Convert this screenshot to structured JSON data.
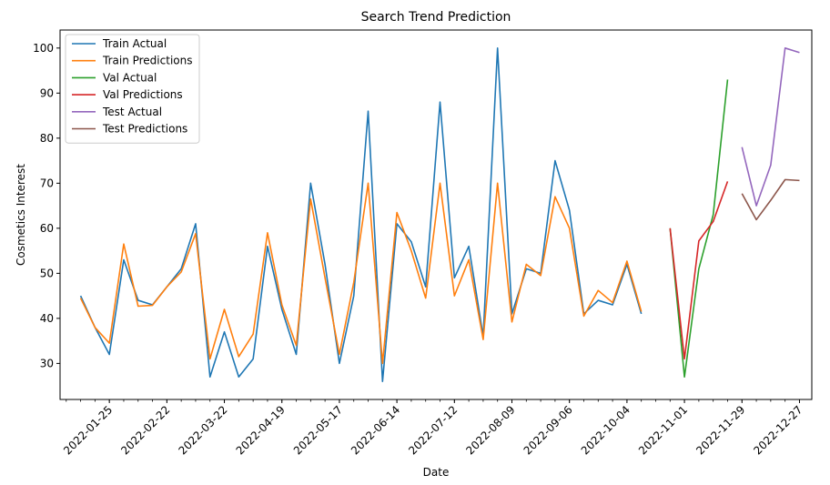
{
  "chart_data": {
    "type": "line",
    "title": "Search Trend Prediction",
    "xlabel": "Date",
    "ylabel": "Cosmetics Interest",
    "xlim": [
      "2022-01-01",
      "2023-01-02"
    ],
    "ylim": [
      22,
      104
    ],
    "yticks": [
      30,
      40,
      50,
      60,
      70,
      80,
      90,
      100
    ],
    "xticks": [
      "2022-01-25",
      "2022-02-22",
      "2022-03-22",
      "2022-04-19",
      "2022-05-17",
      "2022-06-14",
      "2022-07-12",
      "2022-08-09",
      "2022-09-06",
      "2022-10-04",
      "2022-11-01",
      "2022-11-29",
      "2022-12-27"
    ],
    "legend_position": "top-left",
    "grid": false,
    "series": [
      {
        "name": "Train Actual",
        "color": "#1f77b4",
        "x": [
          "2022-01-11",
          "2022-01-18",
          "2022-01-25",
          "2022-02-01",
          "2022-02-08",
          "2022-02-15",
          "2022-02-22",
          "2022-03-01",
          "2022-03-08",
          "2022-03-15",
          "2022-03-22",
          "2022-03-29",
          "2022-04-05",
          "2022-04-12",
          "2022-04-19",
          "2022-04-26",
          "2022-05-03",
          "2022-05-10",
          "2022-05-17",
          "2022-05-24",
          "2022-05-31",
          "2022-06-07",
          "2022-06-14",
          "2022-06-21",
          "2022-06-28",
          "2022-07-05",
          "2022-07-12",
          "2022-07-19",
          "2022-07-26",
          "2022-08-02",
          "2022-08-09",
          "2022-08-16",
          "2022-08-23",
          "2022-08-30",
          "2022-09-06",
          "2022-09-13",
          "2022-09-20",
          "2022-09-27",
          "2022-10-04",
          "2022-10-11",
          "2022-10-18"
        ],
        "values": [
          45,
          38,
          32,
          53,
          44,
          43,
          47,
          51,
          61,
          27,
          37,
          27,
          31,
          56,
          42,
          32,
          70,
          52,
          30,
          45,
          86,
          26,
          61,
          57,
          47,
          88,
          49,
          56,
          36,
          100,
          41,
          51,
          50,
          75,
          64,
          41,
          44,
          43,
          52,
          41,
          null
        ]
      },
      {
        "name": "Train Predictions",
        "color": "#ff7f0e",
        "x": [
          "2022-01-11",
          "2022-01-18",
          "2022-01-25",
          "2022-02-01",
          "2022-02-08",
          "2022-02-15",
          "2022-02-22",
          "2022-03-01",
          "2022-03-08",
          "2022-03-15",
          "2022-03-22",
          "2022-03-29",
          "2022-04-05",
          "2022-04-12",
          "2022-04-19",
          "2022-04-26",
          "2022-05-03",
          "2022-05-10",
          "2022-05-17",
          "2022-05-24",
          "2022-05-31",
          "2022-06-07",
          "2022-06-14",
          "2022-06-21",
          "2022-06-28",
          "2022-07-05",
          "2022-07-12",
          "2022-07-19",
          "2022-07-26",
          "2022-08-02",
          "2022-08-09",
          "2022-08-16",
          "2022-08-23",
          "2022-08-30",
          "2022-09-06",
          "2022-09-13",
          "2022-09-20",
          "2022-09-27",
          "2022-10-04",
          "2022-10-11",
          "2022-10-18"
        ],
        "values": [
          44.5,
          38,
          34.5,
          56.5,
          42.7,
          42.9,
          47,
          50.3,
          58.8,
          31,
          42,
          31.5,
          36.5,
          59,
          43,
          34,
          66.5,
          49,
          32,
          48,
          70,
          30,
          63.5,
          55,
          44.5,
          70,
          45,
          53,
          35.3,
          70,
          39.2,
          52,
          49.5,
          67,
          60,
          40.5,
          46.2,
          43.5,
          52.7,
          41.5,
          null
        ]
      },
      {
        "name": "Val Actual",
        "color": "#2ca02c",
        "x": [
          "2022-10-25",
          "2022-11-01",
          "2022-11-08",
          "2022-11-15",
          "2022-11-22"
        ],
        "values": [
          60,
          27,
          51,
          63,
          93
        ]
      },
      {
        "name": "Val Predictions",
        "color": "#d62728",
        "x": [
          "2022-10-25",
          "2022-11-01",
          "2022-11-08",
          "2022-11-15",
          "2022-11-22"
        ],
        "values": [
          60,
          31,
          57.2,
          61.5,
          70.4
        ]
      },
      {
        "name": "Test Actual",
        "color": "#9467bd",
        "x": [
          "2022-11-29",
          "2022-12-06",
          "2022-12-13",
          "2022-12-20",
          "2022-12-27"
        ],
        "values": [
          78,
          65,
          74,
          100,
          99
        ]
      },
      {
        "name": "Test Predictions",
        "color": "#8c564b",
        "x": [
          "2022-11-29",
          "2022-12-06",
          "2022-12-13",
          "2022-12-20",
          "2022-12-27"
        ],
        "values": [
          67.7,
          61.9,
          66.2,
          70.8,
          70.6
        ]
      }
    ]
  }
}
